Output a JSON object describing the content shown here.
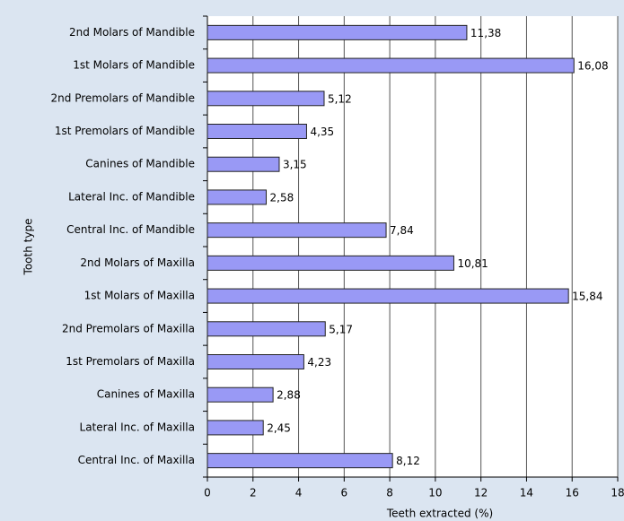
{
  "chart_data": {
    "type": "hbar",
    "x_label": "Teeth extracted (%)",
    "y_label": "Tooth type",
    "categories": [
      "2nd Molars of Mandible",
      "1st Molars of Mandible",
      "2nd Premolars of Mandible",
      "1st Premolars of Mandible",
      "Canines of Mandible",
      "Lateral Inc. of Mandible",
      "Central Inc. of Mandible",
      "2nd Molars of Maxilla",
      "1st Molars of Maxilla",
      "2nd Premolars of Maxilla",
      "1st Premolars of Maxilla",
      "Canines of Maxilla",
      "Lateral Inc. of Maxilla",
      "Central Inc. of Maxilla"
    ],
    "values": [
      11.38,
      16.08,
      5.12,
      4.35,
      3.15,
      2.58,
      7.84,
      10.81,
      15.84,
      5.17,
      4.23,
      2.88,
      2.45,
      8.12
    ],
    "value_labels": [
      "11,38",
      "16,08",
      "5,12",
      "4,35",
      "3,15",
      "2,58",
      "7,84",
      "10,81",
      "15,84",
      "5,17",
      "4,23",
      "2,88",
      "2,45",
      "8,12"
    ],
    "color": "#9999f5",
    "xlim": [
      0,
      18
    ],
    "xticks": [
      0,
      2,
      4,
      6,
      8,
      10,
      12,
      14,
      16,
      18
    ],
    "grid": true
  }
}
